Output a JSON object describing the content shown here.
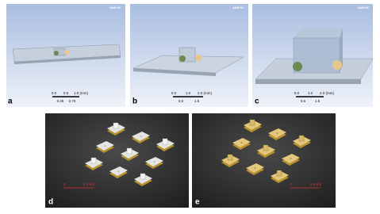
{
  "panels": [
    {
      "label": "a",
      "watermark": "ANSYS",
      "scale_top": [
        "0.0",
        "0.5",
        "1.0 (mm)"
      ],
      "scale_bottom": [
        "0.25",
        "0.75"
      ]
    },
    {
      "label": "b",
      "watermark": "ANSYS",
      "scale_top": [
        "0.0",
        "1.0",
        "2.0 (mm)"
      ],
      "scale_bottom": [
        "0.5",
        "1.5"
      ]
    },
    {
      "label": "c",
      "watermark": "ANSYS",
      "scale_top": [
        "0.0",
        "1.0",
        "2.0 (mm)"
      ],
      "scale_bottom": [
        "0.5",
        "1.5"
      ]
    },
    {
      "label": "d",
      "scale": [
        "0",
        "5 (mm)"
      ]
    },
    {
      "label": "e",
      "scale": [
        "0",
        "5 (mm)"
      ]
    }
  ]
}
